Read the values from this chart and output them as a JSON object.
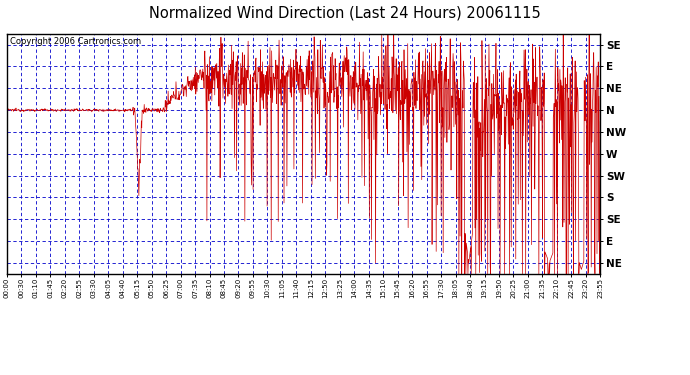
{
  "title": "Normalized Wind Direction (Last 24 Hours) 20061115",
  "copyright": "Copyright 2006 Cartronics.com",
  "background_color": "#ffffff",
  "plot_bg_color": "#ffffff",
  "line_color": "#cc0000",
  "grid_color": "#0000cc",
  "axis_color": "#000000",
  "ytick_labels": [
    "SE",
    "E",
    "NE",
    "N",
    "NW",
    "W",
    "SW",
    "S",
    "SE",
    "E",
    "NE"
  ],
  "ytick_values": [
    10,
    9,
    8,
    7,
    6,
    5,
    4,
    3,
    2,
    1,
    0
  ],
  "ylim": [
    -0.5,
    10.5
  ],
  "xtick_labels": [
    "00:00",
    "00:30",
    "01:10",
    "01:45",
    "02:20",
    "02:55",
    "03:30",
    "04:05",
    "04:40",
    "05:15",
    "05:50",
    "06:25",
    "07:00",
    "07:35",
    "08:10",
    "08:45",
    "09:20",
    "09:55",
    "10:30",
    "11:05",
    "11:40",
    "12:15",
    "12:50",
    "13:25",
    "14:00",
    "14:35",
    "15:10",
    "15:45",
    "16:20",
    "16:55",
    "17:30",
    "18:05",
    "18:40",
    "19:15",
    "19:50",
    "20:25",
    "21:00",
    "21:35",
    "22:10",
    "22:45",
    "23:20",
    "23:55"
  ],
  "figsize": [
    6.9,
    3.75
  ],
  "dpi": 100
}
